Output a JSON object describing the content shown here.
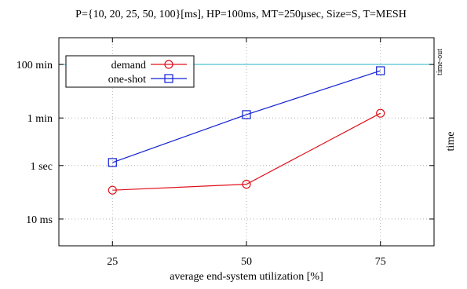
{
  "chart_data": {
    "type": "line",
    "title": "P={10, 20, 25, 50, 100}[ms], HP=100ms, MT=250µsec, Size=S, T=MESH",
    "xlabel": "average end-system utilization [%]",
    "ylabel": "time",
    "y_scale": "log",
    "y_unit": "ms",
    "xlim": [
      15,
      85
    ],
    "ylim": [
      1,
      60000000
    ],
    "grid": true,
    "legend_placement": "top-left",
    "x_ticks": [
      {
        "value": 25,
        "label": "25"
      },
      {
        "value": 50,
        "label": "50"
      },
      {
        "value": 75,
        "label": "75"
      }
    ],
    "y_ticks": [
      {
        "value": 10,
        "label": "10 ms"
      },
      {
        "value": 1000,
        "label": "1 sec"
      },
      {
        "value": 60000,
        "label": "1 min"
      },
      {
        "value": 6000000,
        "label": "100 min"
      }
    ],
    "reference_line": {
      "value": 6000000,
      "label": "time-out",
      "color": "#40c0d0"
    },
    "x": [
      25,
      50,
      75
    ],
    "series": [
      {
        "name": "demand",
        "values": [
          120,
          200,
          90000
        ],
        "color": "#e0101a",
        "marker": "circle"
      },
      {
        "name": "one-shot",
        "values": [
          1300,
          80000,
          3500000
        ],
        "color": "#1020d0",
        "marker": "square"
      }
    ]
  }
}
